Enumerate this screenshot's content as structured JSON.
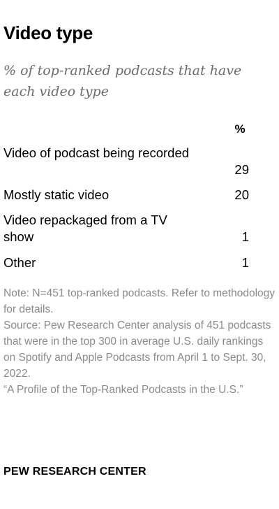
{
  "title": "Video type",
  "subtitle": "% of top-ranked podcasts that have each video type",
  "chart_data": {
    "type": "table",
    "columns": [
      "%"
    ],
    "rows": [
      {
        "label": "Video of podcast being recorded",
        "value": 29
      },
      {
        "label": "Mostly static video",
        "value": 20
      },
      {
        "label": "Video repackaged from a TV show",
        "value": 1
      },
      {
        "label": "Other",
        "value": 1
      }
    ]
  },
  "notes": {
    "note": "Note: N=451 top-ranked podcasts. Refer to methodology for details.",
    "source": "Source: Pew Research Center analysis of 451 podcasts that were in the top 300 in average U.S. daily rankings on Spotify and Apple Podcasts from April 1 to Sept. 30, 2022.",
    "report": "“A Profile of the Top-Ranked Podcasts in the U.S.”"
  },
  "logo": "PEW RESEARCH CENTER"
}
